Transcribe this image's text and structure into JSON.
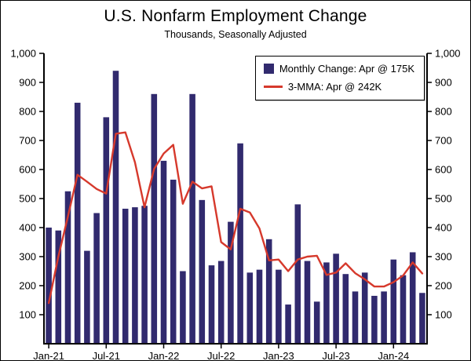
{
  "chart_data": {
    "type": "bar",
    "title": "U.S. Nonfarm Employment Change",
    "subtitle": "Thousands, Seasonally Adjusted",
    "ylim": [
      0,
      1000
    ],
    "ytick_step": 100,
    "grid": false,
    "legend_position": "top-right",
    "axes_color": "#000000",
    "x_tick_labels": [
      "Jan-21",
      "Jul-21",
      "Jan-22",
      "Jul-22",
      "Jan-23",
      "Jul-23",
      "Jan-24"
    ],
    "x_tick_indices": [
      0,
      6,
      12,
      18,
      24,
      30,
      36
    ],
    "months": [
      "Jan-21",
      "Feb-21",
      "Mar-21",
      "Apr-21",
      "May-21",
      "Jun-21",
      "Jul-21",
      "Aug-21",
      "Sep-21",
      "Oct-21",
      "Nov-21",
      "Dec-21",
      "Jan-22",
      "Feb-22",
      "Mar-22",
      "Apr-22",
      "May-22",
      "Jun-22",
      "Jul-22",
      "Aug-22",
      "Sep-22",
      "Oct-22",
      "Nov-22",
      "Dec-22",
      "Jan-23",
      "Feb-23",
      "Mar-23",
      "Apr-23",
      "May-23",
      "Jun-23",
      "Jul-23",
      "Aug-23",
      "Sep-23",
      "Oct-23",
      "Nov-23",
      "Dec-23",
      "Jan-24",
      "Feb-24",
      "Mar-24",
      "Apr-24"
    ],
    "series": [
      {
        "name": "Monthly Change: Apr @ 175K",
        "type": "bar",
        "color": "#312a6e",
        "values": [
          400,
          390,
          525,
          830,
          320,
          450,
          780,
          940,
          465,
          470,
          475,
          860,
          630,
          565,
          250,
          860,
          495,
          270,
          285,
          420,
          690,
          245,
          255,
          360,
          255,
          135,
          480,
          285,
          145,
          280,
          310,
          240,
          180,
          245,
          165,
          180,
          290,
          236,
          315,
          175
        ]
      },
      {
        "name": "3-MMA: Apr @ 242K",
        "type": "line",
        "color": "#d6392c",
        "values": [
          140,
          300,
          438,
          582,
          558,
          533,
          517,
          723,
          728,
          625,
          470,
          602,
          655,
          685,
          482,
          558,
          535,
          542,
          350,
          325,
          465,
          452,
          397,
          287,
          290,
          250,
          290,
          300,
          303,
          237,
          245,
          277,
          243,
          222,
          197,
          197,
          212,
          235,
          280,
          242
        ]
      }
    ]
  }
}
